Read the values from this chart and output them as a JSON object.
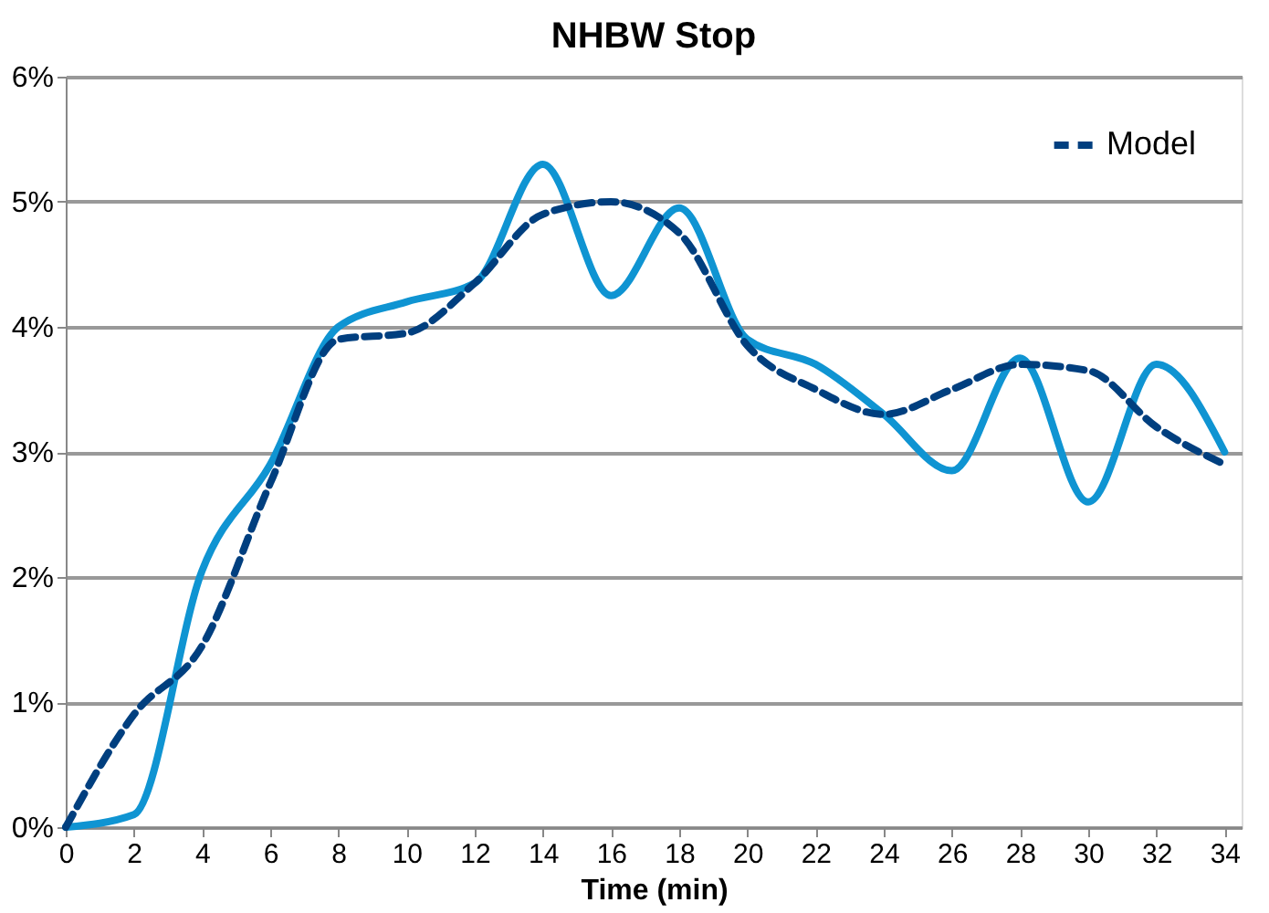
{
  "chart_data": {
    "type": "line",
    "title": "NHBW Stop",
    "xlabel": "Time (min)",
    "x": [
      0,
      2,
      4,
      6,
      8,
      10,
      12,
      14,
      16,
      18,
      20,
      22,
      24,
      26,
      28,
      30,
      32,
      34
    ],
    "series": [
      {
        "color": "#0f94d2",
        "line_style": "solid",
        "values": [
          0,
          0.1,
          2.05,
          2.9,
          4.0,
          4.2,
          4.35,
          5.3,
          4.25,
          4.95,
          3.9,
          3.7,
          3.3,
          2.85,
          3.75,
          2.6,
          3.7,
          3.0
        ]
      },
      {
        "name": "Model",
        "color": "#003f7f",
        "line_style": "dashed",
        "values": [
          0,
          0.9,
          1.45,
          2.75,
          3.9,
          3.95,
          4.35,
          4.9,
          5.0,
          4.75,
          3.85,
          3.5,
          3.3,
          3.5,
          3.7,
          3.65,
          3.2,
          2.9
        ]
      }
    ],
    "xlim": [
      0,
      34.5
    ],
    "xticks": [
      0,
      2,
      4,
      6,
      8,
      10,
      12,
      14,
      16,
      18,
      20,
      22,
      24,
      26,
      28,
      30,
      32,
      34
    ],
    "ylim": [
      0,
      6
    ],
    "yticks": [
      {
        "value": 0,
        "label": "0%"
      },
      {
        "value": 1,
        "label": "1%"
      },
      {
        "value": 2,
        "label": "2%"
      },
      {
        "value": 3,
        "label": "3%"
      },
      {
        "value": 4,
        "label": "4%"
      },
      {
        "value": 5,
        "label": "5%"
      },
      {
        "value": 6,
        "label": "6%"
      }
    ],
    "grid": "y",
    "legend": "top right",
    "marker": "none"
  }
}
